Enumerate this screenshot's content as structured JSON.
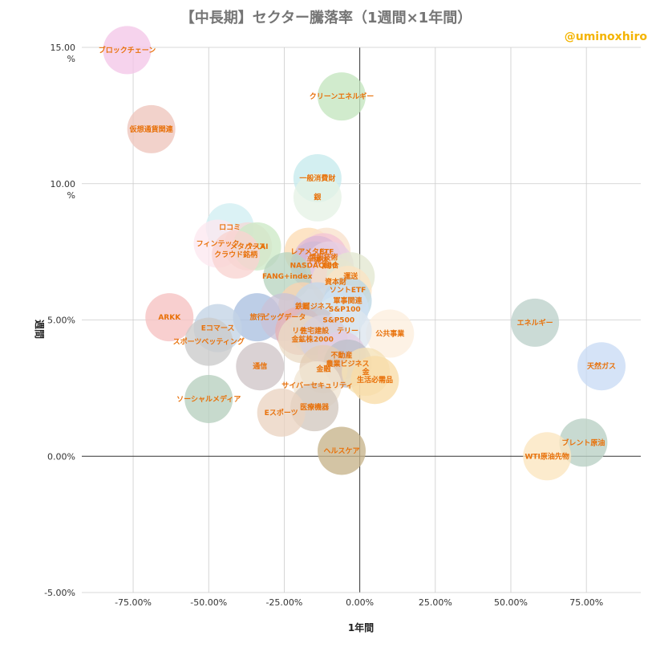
{
  "watermark": "@uminoxhiro",
  "chart_data": {
    "type": "scatter",
    "title": "【中長期】セクター騰落率（1週間×1年間）",
    "xlabel": "1年間",
    "ylabel": "週間",
    "xlim": [
      -0.92,
      0.93
    ],
    "ylim": [
      -0.05,
      0.15
    ],
    "x_ticks": [
      "-75.00%",
      "-50.00%",
      "-25.00%",
      "0.00%",
      "25.00%",
      "50.00%",
      "75.00%"
    ],
    "x_tick_values": [
      -0.75,
      -0.5,
      -0.25,
      0,
      0.25,
      0.5,
      0.75
    ],
    "y_ticks": [
      "15.00\n%",
      "10.00\n%",
      "5.00%",
      "0.00%",
      "-5.00%"
    ],
    "y_tick_values": [
      0.15,
      0.1,
      0.05,
      0.0,
      -0.05
    ],
    "grid": true,
    "legend": "none",
    "points": [
      {
        "label": "ブロックチェーン",
        "x": -0.77,
        "y": 0.149,
        "color": "#f4c7e8"
      },
      {
        "label": "仮想通貨関連",
        "x": -0.69,
        "y": 0.12,
        "color": "#eec5bd"
      },
      {
        "label": "クリーンエネルギー",
        "x": -0.06,
        "y": 0.132,
        "color": "#c4e5bf"
      },
      {
        "label": "一般消費財",
        "x": -0.14,
        "y": 0.102,
        "color": "#c7ebed"
      },
      {
        "label": "銀",
        "x": -0.14,
        "y": 0.095,
        "color": "#e5f2e6"
      },
      {
        "label": "ロコミ",
        "x": -0.43,
        "y": 0.084,
        "color": "#d1eef2"
      },
      {
        "label": "フィンテック",
        "x": -0.47,
        "y": 0.078,
        "color": "#fde8f0"
      },
      {
        "label": "メタバース",
        "x": -0.37,
        "y": 0.077,
        "color": "#f4dad7"
      },
      {
        "label": "クスAI",
        "x": -0.34,
        "y": 0.077,
        "color": "#cde9c7"
      },
      {
        "label": "クラウド銘柄",
        "x": -0.41,
        "y": 0.074,
        "color": "#f8d3d1"
      },
      {
        "label": "レアメタル",
        "x": -0.17,
        "y": 0.075,
        "color": "#fcdcb5"
      },
      {
        "label": "ETF",
        "x": -0.11,
        "y": 0.075,
        "color": "#f9e1cc"
      },
      {
        "label": "情報技術",
        "x": -0.12,
        "y": 0.073,
        "color": "#f4c4d6"
      },
      {
        "label": "半導体",
        "x": -0.14,
        "y": 0.072,
        "color": "#ddb8d7"
      },
      {
        "label": "NASDAQ総合",
        "x": -0.15,
        "y": 0.07,
        "color": "#d1b9d6"
      },
      {
        "label": "100",
        "x": -0.1,
        "y": 0.07,
        "color": "#e8cfe3"
      },
      {
        "label": "FANG+index",
        "x": -0.24,
        "y": 0.066,
        "color": "#b9d5c0"
      },
      {
        "label": "資本財",
        "x": -0.08,
        "y": 0.064,
        "color": "#f2dfc9"
      },
      {
        "label": "運送",
        "x": -0.03,
        "y": 0.066,
        "color": "#e3e8d1"
      },
      {
        "label": "ソントETF",
        "x": -0.04,
        "y": 0.061,
        "color": "#fbe4c4"
      },
      {
        "label": "軍事関連",
        "x": -0.04,
        "y": 0.057,
        "color": "#bdd7e4"
      },
      {
        "label": "鉄鋼",
        "x": -0.19,
        "y": 0.055,
        "color": "#f9d4b2"
      },
      {
        "label": "ビジネス",
        "x": -0.14,
        "y": 0.055,
        "color": "#c4d7eb"
      },
      {
        "label": "S&P100",
        "x": -0.05,
        "y": 0.054,
        "color": "#d0e1f2"
      },
      {
        "label": "旅行",
        "x": -0.34,
        "y": 0.051,
        "color": "#abc0e0"
      },
      {
        "label": "ビッグデータ",
        "x": -0.25,
        "y": 0.051,
        "color": "#c9c3d7"
      },
      {
        "label": "S&P500",
        "x": -0.07,
        "y": 0.05,
        "color": "#d6e7ef"
      },
      {
        "label": "公共事業",
        "x": 0.1,
        "y": 0.045,
        "color": "#fdeede"
      },
      {
        "label": "リチ",
        "x": -0.2,
        "y": 0.046,
        "color": "#e5b2b5"
      },
      {
        "label": "住宅建設",
        "x": -0.15,
        "y": 0.046,
        "color": "#c9c3c9"
      },
      {
        "label": "テリー",
        "x": -0.04,
        "y": 0.046,
        "color": "#dce5ee"
      },
      {
        "label": "金鉱株",
        "x": -0.19,
        "y": 0.043,
        "color": "#eadbc5"
      },
      {
        "label": "2000",
        "x": -0.12,
        "y": 0.043,
        "color": "#d7d1dd"
      },
      {
        "label": "ARKK",
        "x": -0.63,
        "y": 0.051,
        "color": "#f6c2c2"
      },
      {
        "label": "Eコマース",
        "x": -0.47,
        "y": 0.047,
        "color": "#c3d4e6"
      },
      {
        "label": "スポーツベッティング",
        "x": -0.5,
        "y": 0.042,
        "color": "#cbcbcb"
      },
      {
        "label": "不動産",
        "x": -0.06,
        "y": 0.037,
        "color": "#e3cde3"
      },
      {
        "label": "農業ビジネス",
        "x": -0.04,
        "y": 0.034,
        "color": "#bdbfc9"
      },
      {
        "label": "金融",
        "x": -0.12,
        "y": 0.032,
        "color": "#e3cdb5"
      },
      {
        "label": "金",
        "x": 0.02,
        "y": 0.031,
        "color": "#f5e1b6"
      },
      {
        "label": "生活必需品",
        "x": 0.05,
        "y": 0.028,
        "color": "#f9dda8"
      },
      {
        "label": "通信",
        "x": -0.33,
        "y": 0.033,
        "color": "#cfc5c8"
      },
      {
        "label": "サイバーセキュリティ",
        "x": -0.14,
        "y": 0.026,
        "color": "#f1e6d3"
      },
      {
        "label": "ソーシャルメディア",
        "x": -0.5,
        "y": 0.021,
        "color": "#b7cfbf"
      },
      {
        "label": "医療機器",
        "x": -0.15,
        "y": 0.018,
        "color": "#d2c8bf"
      },
      {
        "label": "Eスポーツ",
        "x": -0.26,
        "y": 0.016,
        "color": "#ebd4c1"
      },
      {
        "label": "ヘルスケア",
        "x": -0.06,
        "y": 0.002,
        "color": "#c7b48a"
      },
      {
        "label": "エネルギー",
        "x": 0.58,
        "y": 0.049,
        "color": "#bcd1cb"
      },
      {
        "label": "天然ガス",
        "x": 0.8,
        "y": 0.033,
        "color": "#c9dbf5"
      },
      {
        "label": "ブレント原油",
        "x": 0.74,
        "y": 0.005,
        "color": "#b9cfc4"
      },
      {
        "label": "WTI原油先物",
        "x": 0.62,
        "y": 0.0,
        "color": "#fbe6bf"
      }
    ]
  }
}
